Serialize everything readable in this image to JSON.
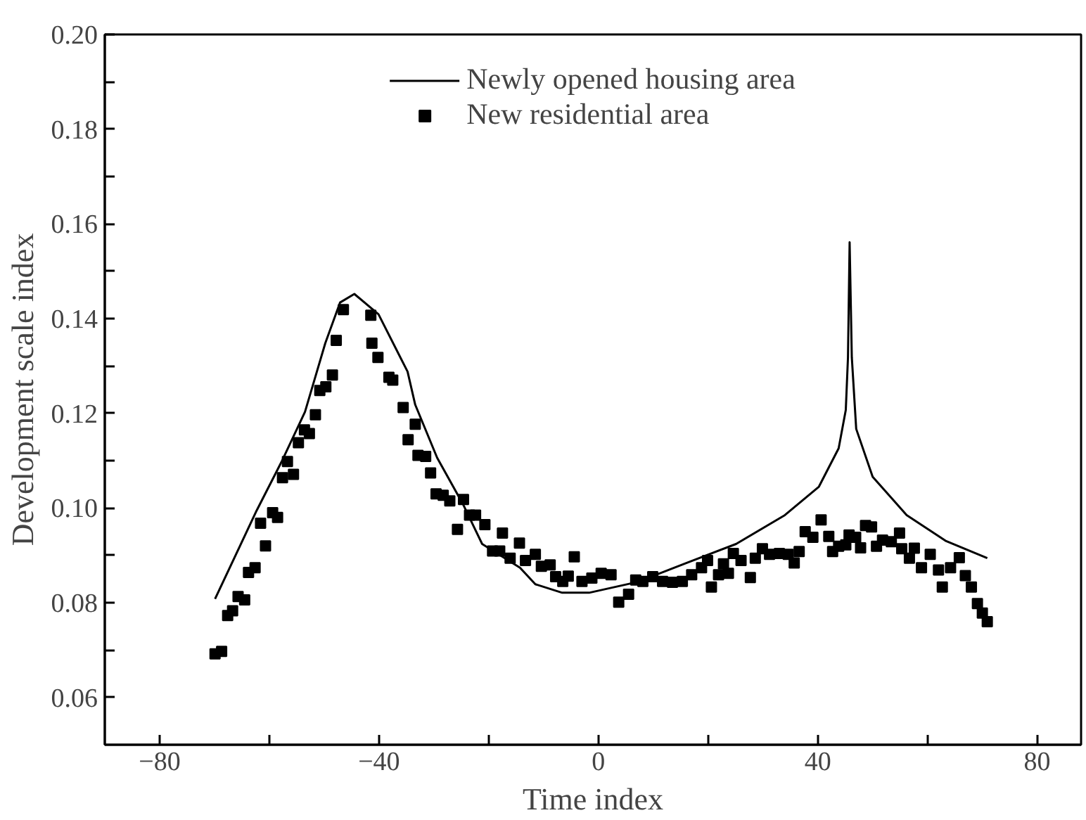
{
  "chart_data": {
    "type": "scatter",
    "xlabel": "Time index",
    "ylabel": "Development scale index",
    "xlim": [
      -90,
      88
    ],
    "ylim": [
      0.05,
      0.2
    ],
    "xticks": [
      -80,
      {
        "value": -60,
        "label": null
      },
      -40,
      {
        "value": -20,
        "label": null
      },
      0,
      {
        "value": 20,
        "label": null
      },
      40,
      {
        "value": 60,
        "label": null
      },
      80
    ],
    "yticks": [
      {
        "value": 0.06,
        "label": "0.06"
      },
      {
        "value": 0.07,
        "label": null
      },
      {
        "value": 0.08,
        "label": "0.08"
      },
      {
        "value": 0.09,
        "label": null
      },
      {
        "value": 0.1,
        "label": "0.10"
      },
      {
        "value": 0.11,
        "label": null
      },
      {
        "value": 0.12,
        "label": "0.12"
      },
      {
        "value": 0.13,
        "label": null
      },
      {
        "value": 0.14,
        "label": "0.14"
      },
      {
        "value": 0.15,
        "label": null
      },
      {
        "value": 0.16,
        "label": "0.16"
      },
      {
        "value": 0.17,
        "label": null
      },
      {
        "value": 0.18,
        "label": "0.18"
      },
      {
        "value": 0.19,
        "label": null
      },
      {
        "value": 0.2,
        "label": "0.20"
      }
    ],
    "grid": false,
    "legend": "top",
    "series": [
      {
        "name": "Newly opened housing area",
        "type": "line",
        "color": "#000000",
        "line_style": "solid",
        "x": [
          -69.9,
          -62.3,
          -57.8,
          -53.5,
          -49.8,
          -47.1,
          -44.5,
          -40.1,
          -34.8,
          -33.4,
          -29.4,
          -24.6,
          -21.2,
          -14.3,
          -11.5,
          -6.6,
          -1.7,
          7.2,
          16.1,
          25.1,
          34.0,
          40.2,
          43.8,
          45.1,
          45.5,
          45.8,
          46.2,
          47.0,
          50.0,
          56.2,
          63.4,
          70.9
        ],
        "values": [
          0.0808,
          0.0995,
          0.1097,
          0.1203,
          0.1348,
          0.1434,
          0.1452,
          0.1409,
          0.1288,
          0.1218,
          0.1106,
          0.1006,
          0.0924,
          0.0874,
          0.0839,
          0.0821,
          0.0821,
          0.0844,
          0.0884,
          0.0924,
          0.0985,
          0.1045,
          0.1126,
          0.1207,
          0.1318,
          0.1561,
          0.1318,
          0.1167,
          0.1066,
          0.0985,
          0.093,
          0.0894
        ]
      },
      {
        "name": "New residential area",
        "color": "#000000",
        "marker": "square",
        "x": [
          -69.9,
          -68.7,
          -67.6,
          -66.7,
          -65.7,
          -64.5,
          -63.8,
          -62.6,
          -61.6,
          -60.7,
          -59.4,
          -58.5,
          -57.6,
          -56.7,
          -55.6,
          -54.7,
          -53.6,
          -52.7,
          -51.6,
          -50.8,
          -49.7,
          -48.5,
          -47.8,
          -46.5,
          -41.5,
          -41.3,
          -40.2,
          -38.2,
          -37.5,
          -35.6,
          -34.7,
          -33.4,
          -32.9,
          -31.5,
          -30.6,
          -29.6,
          -28.3,
          -27.1,
          -25.7,
          -24.6,
          -23.5,
          -22.4,
          -20.7,
          -19.3,
          -18.0,
          -17.5,
          -16.1,
          -14.4,
          -13.3,
          -11.5,
          -10.4,
          -8.8,
          -7.8,
          -6.5,
          -5.5,
          -4.4,
          -3.0,
          -1.2,
          0.5,
          2.3,
          3.7,
          5.5,
          6.8,
          8.1,
          9.9,
          11.7,
          13.5,
          15.3,
          17.0,
          18.8,
          19.9,
          20.6,
          21.9,
          22.8,
          23.7,
          24.6,
          26.0,
          27.7,
          28.6,
          29.9,
          31.2,
          33.0,
          34.6,
          35.7,
          36.6,
          37.7,
          39.1,
          40.6,
          42.0,
          42.7,
          43.8,
          45.1,
          45.7,
          46.9,
          47.8,
          48.7,
          49.8,
          50.7,
          51.8,
          53.4,
          54.9,
          55.3,
          56.7,
          57.6,
          58.9,
          60.5,
          62.0,
          62.7,
          64.2,
          65.8,
          66.9,
          68.0,
          69.1,
          70.0,
          70.9
        ],
        "values": [
          0.0692,
          0.0697,
          0.0773,
          0.0783,
          0.0813,
          0.0806,
          0.0864,
          0.0874,
          0.0968,
          0.092,
          0.099,
          0.098,
          0.1064,
          0.1098,
          0.1071,
          0.1138,
          0.1165,
          0.1157,
          0.1197,
          0.1248,
          0.1256,
          0.1281,
          0.1354,
          0.1419,
          0.1407,
          0.1348,
          0.1318,
          0.1276,
          0.127,
          0.1212,
          0.1144,
          0.1177,
          0.1111,
          0.1109,
          0.1074,
          0.103,
          0.1027,
          0.1015,
          0.0955,
          0.1018,
          0.0985,
          0.0985,
          0.0965,
          0.0909,
          0.0909,
          0.0947,
          0.0894,
          0.0926,
          0.0889,
          0.0902,
          0.0877,
          0.088,
          0.0855,
          0.0845,
          0.0856,
          0.0897,
          0.0845,
          0.0852,
          0.0862,
          0.0859,
          0.0801,
          0.0818,
          0.0848,
          0.0845,
          0.0855,
          0.0845,
          0.0843,
          0.0845,
          0.0859,
          0.0874,
          0.0889,
          0.0833,
          0.0859,
          0.0882,
          0.0862,
          0.0904,
          0.0889,
          0.0853,
          0.0894,
          0.0914,
          0.0902,
          0.0904,
          0.0902,
          0.0884,
          0.0908,
          0.095,
          0.0938,
          0.0975,
          0.094,
          0.0908,
          0.0919,
          0.0922,
          0.0943,
          0.0938,
          0.0916,
          0.0963,
          0.096,
          0.0919,
          0.0932,
          0.0929,
          0.0947,
          0.0914,
          0.0894,
          0.0915,
          0.0874,
          0.0902,
          0.0869,
          0.0833,
          0.0874,
          0.0895,
          0.0857,
          0.0833,
          0.0798,
          0.0778,
          0.076
        ]
      }
    ]
  }
}
